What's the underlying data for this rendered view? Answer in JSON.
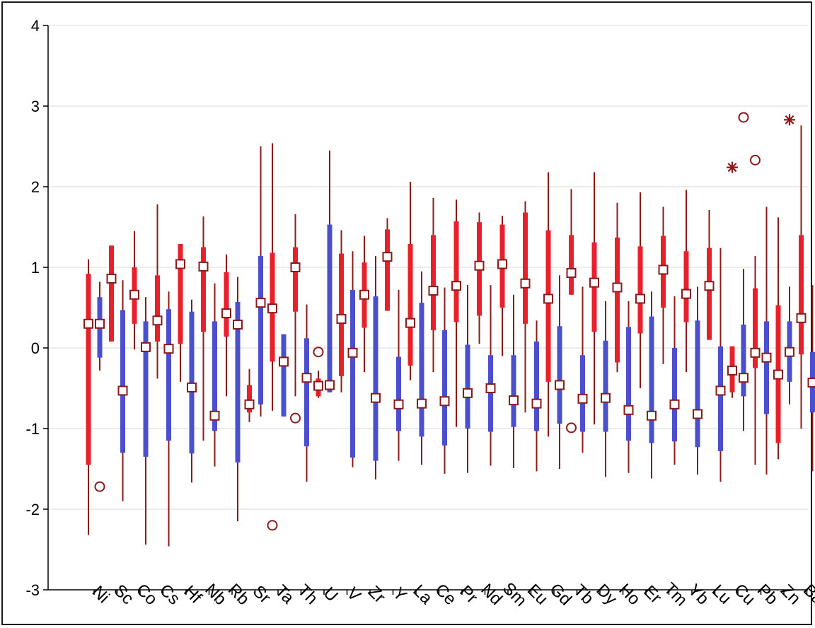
{
  "chart_data": {
    "type": "boxplot",
    "title": "",
    "xlabel": "",
    "ylabel": "",
    "ylim": [
      -3,
      4
    ],
    "yticks": [
      -3,
      -2,
      -1,
      0,
      1,
      2,
      3,
      4
    ],
    "grid": "horizontal",
    "colors": {
      "series_a": "#e8202a",
      "series_b": "#4a4fd0",
      "whisker": "#8b1a1a",
      "marker": "#8b1a1a"
    },
    "categories": [
      "Ni",
      "Sc",
      "Co",
      "Cs",
      "Hf",
      "Nb",
      "Rb",
      "Sr",
      "Ta",
      "Th",
      "U",
      "V",
      "Zr",
      "Y",
      "La",
      "Ce",
      "Pr",
      "Nd",
      "Sm",
      "Eu",
      "Gd",
      "Tb",
      "Dy",
      "Ho",
      "Er",
      "Tm",
      "Yb",
      "Lu",
      "Cu",
      "Pb",
      "Zn",
      "Ba"
    ],
    "series": [
      {
        "color_key": "series_a",
        "boxes": [
          {
            "wmin": -2.32,
            "q1": -1.45,
            "median": 0.3,
            "q3": 0.92,
            "wmax": 1.1
          },
          {
            "wmin": 0.08,
            "q1": 0.08,
            "median": 0.86,
            "q3": 1.27,
            "wmax": 1.27
          },
          {
            "wmin": -0.02,
            "q1": 0.3,
            "median": 0.66,
            "q3": 1.0,
            "wmax": 1.45
          },
          {
            "wmin": -0.38,
            "q1": 0.08,
            "median": 0.34,
            "q3": 0.9,
            "wmax": 1.78
          },
          {
            "wmin": -0.42,
            "q1": 0.05,
            "median": 1.04,
            "q3": 1.29,
            "wmax": 1.29
          },
          {
            "wmin": -1.15,
            "q1": 0.2,
            "median": 1.01,
            "q3": 1.25,
            "wmax": 1.63
          },
          {
            "wmin": -0.6,
            "q1": 0.14,
            "median": 0.43,
            "q3": 0.94,
            "wmax": 1.16
          },
          {
            "wmin": -0.92,
            "q1": -0.8,
            "median": -0.7,
            "q3": -0.46,
            "wmax": -0.26
          },
          {
            "wmin": -0.78,
            "q1": -0.17,
            "median": 0.49,
            "q3": 1.18,
            "wmax": 2.54
          },
          {
            "wmin": -0.6,
            "q1": 0.45,
            "median": 1.0,
            "q3": 1.25,
            "wmax": 1.66
          },
          {
            "wmin": -0.62,
            "q1": -0.6,
            "median": -0.47,
            "q3": -0.38,
            "wmax": -0.28
          },
          {
            "wmin": -0.55,
            "q1": -0.35,
            "median": 0.36,
            "q3": 1.17,
            "wmax": 1.46
          },
          {
            "wmin": -0.3,
            "q1": 0.25,
            "median": 0.66,
            "q3": 1.06,
            "wmax": 1.39
          },
          {
            "wmin": 0.46,
            "q1": 0.46,
            "median": 1.13,
            "q3": 1.47,
            "wmax": 1.61
          },
          {
            "wmin": -0.4,
            "q1": -0.22,
            "median": 0.31,
            "q3": 1.29,
            "wmax": 2.06
          },
          {
            "wmin": -0.3,
            "q1": 0.22,
            "median": 0.71,
            "q3": 1.4,
            "wmax": 1.86
          },
          {
            "wmin": -0.98,
            "q1": 0.32,
            "median": 0.77,
            "q3": 1.57,
            "wmax": 1.84
          },
          {
            "wmin": 0.05,
            "q1": 0.4,
            "median": 1.02,
            "q3": 1.56,
            "wmax": 1.68
          },
          {
            "wmin": -0.1,
            "q1": 0.5,
            "median": 1.04,
            "q3": 1.53,
            "wmax": 1.64
          },
          {
            "wmin": -0.8,
            "q1": 0.3,
            "median": 0.8,
            "q3": 1.68,
            "wmax": 1.82
          },
          {
            "wmin": -1.1,
            "q1": -0.42,
            "median": 0.61,
            "q3": 1.46,
            "wmax": 2.18
          },
          {
            "wmin": 0.66,
            "q1": 0.66,
            "median": 0.93,
            "q3": 1.4,
            "wmax": 1.97
          },
          {
            "wmin": -0.95,
            "q1": 0.2,
            "median": 0.81,
            "q3": 1.31,
            "wmax": 2.18
          },
          {
            "wmin": -0.3,
            "q1": -0.18,
            "median": 0.75,
            "q3": 1.37,
            "wmax": 1.8
          },
          {
            "wmin": -0.5,
            "q1": 0.18,
            "median": 0.61,
            "q3": 1.26,
            "wmax": 1.93
          },
          {
            "wmin": -0.2,
            "q1": 0.5,
            "median": 0.97,
            "q3": 1.39,
            "wmax": 1.75
          },
          {
            "wmin": -0.3,
            "q1": 0.32,
            "median": 0.67,
            "q3": 1.2,
            "wmax": 1.96
          },
          {
            "wmin": 0.1,
            "q1": 0.1,
            "median": 0.77,
            "q3": 1.24,
            "wmax": 1.71
          },
          {
            "wmin": -0.62,
            "q1": -0.55,
            "median": -0.28,
            "q3": 0.02,
            "wmax": 0.02
          },
          {
            "wmin": -1.45,
            "q1": -0.25,
            "median": -0.06,
            "q3": 0.74,
            "wmax": 1.14
          },
          {
            "wmin": -1.38,
            "q1": -1.18,
            "median": -0.33,
            "q3": 0.53,
            "wmax": 1.62
          },
          {
            "wmin": -1.0,
            "q1": -0.08,
            "median": 0.37,
            "q3": 1.4,
            "wmax": 2.76
          }
        ]
      },
      {
        "color_key": "series_b",
        "boxes": [
          {
            "wmin": -0.28,
            "q1": -0.12,
            "median": 0.3,
            "q3": 0.63,
            "wmax": 0.82
          },
          {
            "wmin": -1.9,
            "q1": -1.3,
            "median": -0.53,
            "q3": 0.47,
            "wmax": 0.84
          },
          {
            "wmin": -2.44,
            "q1": -1.35,
            "median": 0.01,
            "q3": 0.33,
            "wmax": 0.63
          },
          {
            "wmin": -2.46,
            "q1": -1.15,
            "median": -0.01,
            "q3": 0.48,
            "wmax": 0.7
          },
          {
            "wmin": -1.67,
            "q1": -1.31,
            "median": -0.49,
            "q3": 0.45,
            "wmax": 0.6
          },
          {
            "wmin": -1.47,
            "q1": -1.03,
            "median": -0.84,
            "q3": 0.33,
            "wmax": 0.8
          },
          {
            "wmin": -2.15,
            "q1": -1.42,
            "median": 0.29,
            "q3": 0.57,
            "wmax": 0.88
          },
          {
            "wmin": -0.85,
            "q1": -0.7,
            "median": 0.56,
            "q3": 1.14,
            "wmax": 2.5
          },
          {
            "wmin": -0.85,
            "q1": -0.85,
            "median": -0.17,
            "q3": 0.17,
            "wmax": 0.17
          },
          {
            "wmin": -1.66,
            "q1": -1.22,
            "median": -0.37,
            "q3": 0.12,
            "wmax": 0.54
          },
          {
            "wmin": -0.55,
            "q1": -0.55,
            "median": -0.46,
            "q3": 1.53,
            "wmax": 2.45
          },
          {
            "wmin": -1.48,
            "q1": -1.36,
            "median": -0.06,
            "q3": 0.72,
            "wmax": 1.2
          },
          {
            "wmin": -1.63,
            "q1": -1.4,
            "median": -0.62,
            "q3": 0.64,
            "wmax": 1.14
          },
          {
            "wmin": -1.4,
            "q1": -1.03,
            "median": -0.7,
            "q3": -0.11,
            "wmax": 0.72
          },
          {
            "wmin": -1.45,
            "q1": -1.1,
            "median": -0.69,
            "q3": 0.56,
            "wmax": 0.95
          },
          {
            "wmin": -1.56,
            "q1": -1.21,
            "median": -0.66,
            "q3": 0.22,
            "wmax": 0.75
          },
          {
            "wmin": -1.55,
            "q1": -1.0,
            "median": -0.56,
            "q3": 0.04,
            "wmax": 0.78
          },
          {
            "wmin": -1.46,
            "q1": -1.04,
            "median": -0.5,
            "q3": -0.09,
            "wmax": 0.78
          },
          {
            "wmin": -1.49,
            "q1": -0.98,
            "median": -0.65,
            "q3": -0.09,
            "wmax": 0.66
          },
          {
            "wmin": -1.53,
            "q1": -1.03,
            "median": -0.69,
            "q3": 0.08,
            "wmax": 0.34
          },
          {
            "wmin": -1.5,
            "q1": -0.94,
            "median": -0.46,
            "q3": 0.27,
            "wmax": 0.9
          },
          {
            "wmin": -1.3,
            "q1": -1.04,
            "median": -0.63,
            "q3": -0.09,
            "wmax": 0.76
          },
          {
            "wmin": -1.6,
            "q1": -1.04,
            "median": -0.62,
            "q3": 0.09,
            "wmax": 0.58
          },
          {
            "wmin": -1.55,
            "q1": -1.15,
            "median": -0.77,
            "q3": 0.26,
            "wmax": 0.58
          },
          {
            "wmin": -1.62,
            "q1": -1.18,
            "median": -0.84,
            "q3": 0.39,
            "wmax": 0.7
          },
          {
            "wmin": -1.45,
            "q1": -1.16,
            "median": -0.7,
            "q3": 0.0,
            "wmax": 0.64
          },
          {
            "wmin": -1.57,
            "q1": -1.23,
            "median": -0.82,
            "q3": 0.34,
            "wmax": 0.76
          },
          {
            "wmin": -1.66,
            "q1": -1.28,
            "median": -0.53,
            "q3": 0.02,
            "wmax": 1.24
          },
          {
            "wmin": -1.03,
            "q1": -0.6,
            "median": -0.37,
            "q3": 0.29,
            "wmax": 0.98
          },
          {
            "wmin": -1.57,
            "q1": -0.82,
            "median": -0.12,
            "q3": 0.33,
            "wmax": 1.75
          },
          {
            "wmin": -0.7,
            "q1": -0.42,
            "median": -0.05,
            "q3": 0.33,
            "wmax": 0.76
          },
          {
            "wmin": -1.53,
            "q1": -0.8,
            "median": -0.43,
            "q3": -0.05,
            "wmax": 0.78
          }
        ]
      }
    ],
    "outliers": [
      {
        "category": "Ni",
        "series": 1,
        "y": -1.72,
        "marker": "circle"
      },
      {
        "category": "Ta",
        "series": 0,
        "y": -2.2,
        "marker": "circle"
      },
      {
        "category": "Th",
        "series": 0,
        "y": -0.87,
        "marker": "circle"
      },
      {
        "category": "U",
        "series": 0,
        "y": -0.05,
        "marker": "circle"
      },
      {
        "category": "Tb",
        "series": 0,
        "y": -0.99,
        "marker": "circle"
      },
      {
        "category": "Cu",
        "series": 0,
        "y": 2.24,
        "marker": "star"
      },
      {
        "category": "Cu",
        "series": 1,
        "y": 2.86,
        "marker": "circle"
      },
      {
        "category": "Pb",
        "series": 0,
        "y": 2.33,
        "marker": "circle"
      },
      {
        "category": "Zn",
        "series": 1,
        "y": 2.83,
        "marker": "star"
      }
    ]
  }
}
